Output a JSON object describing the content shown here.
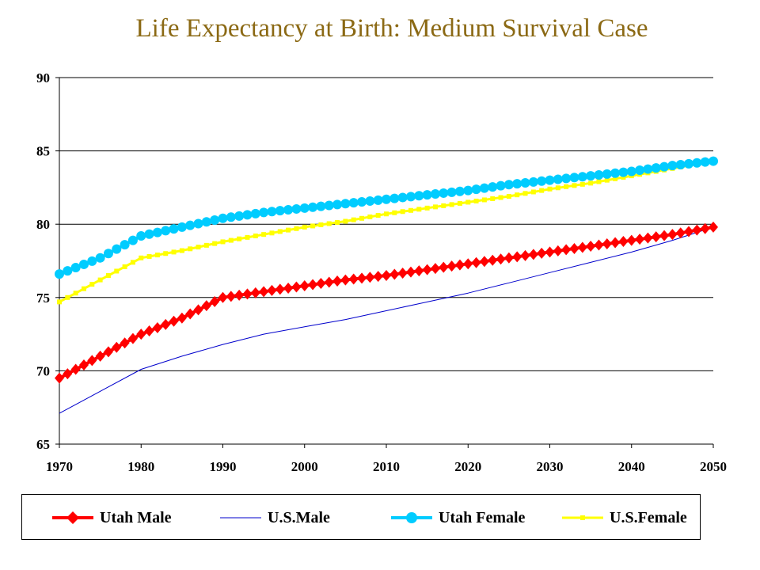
{
  "chart_data": {
    "type": "line",
    "title": "Life Expectancy at Birth: Medium Survival Case",
    "xlabel": "",
    "ylabel": "",
    "xlim": [
      1970,
      2050
    ],
    "ylim": [
      65,
      90
    ],
    "x_ticks": [
      "1970",
      "1980",
      "1990",
      "2000",
      "2010",
      "2020",
      "2030",
      "2040",
      "2050"
    ],
    "y_ticks": [
      "65",
      "70",
      "75",
      "80",
      "85",
      "90"
    ],
    "grid": "horizontal",
    "legend": "bottom",
    "series": [
      {
        "name": "Utah Male",
        "color": "#ff0000",
        "marker": "diamond",
        "points": [
          [
            1970,
            69.5
          ],
          [
            1975,
            71.0
          ],
          [
            1980,
            72.5
          ],
          [
            1985,
            73.6
          ],
          [
            1990,
            75.0
          ],
          [
            1995,
            75.4
          ],
          [
            2000,
            75.8
          ],
          [
            2005,
            76.2
          ],
          [
            2010,
            76.5
          ],
          [
            2015,
            76.9
          ],
          [
            2020,
            77.3
          ],
          [
            2025,
            77.7
          ],
          [
            2030,
            78.1
          ],
          [
            2035,
            78.5
          ],
          [
            2040,
            78.9
          ],
          [
            2045,
            79.3
          ],
          [
            2050,
            79.8
          ]
        ]
      },
      {
        "name": "U.S.Male",
        "color": "#0000cc",
        "marker": "none",
        "points": [
          [
            1970,
            67.1
          ],
          [
            1975,
            68.6
          ],
          [
            1980,
            70.1
          ],
          [
            1985,
            71.0
          ],
          [
            1990,
            71.8
          ],
          [
            1995,
            72.5
          ],
          [
            2000,
            73.0
          ],
          [
            2005,
            73.5
          ],
          [
            2010,
            74.1
          ],
          [
            2015,
            74.7
          ],
          [
            2020,
            75.3
          ],
          [
            2025,
            76.0
          ],
          [
            2030,
            76.7
          ],
          [
            2035,
            77.4
          ],
          [
            2040,
            78.1
          ],
          [
            2045,
            78.9
          ],
          [
            2050,
            79.8
          ]
        ]
      },
      {
        "name": "Utah Female",
        "color": "#00ccff",
        "marker": "circle",
        "points": [
          [
            1970,
            76.6
          ],
          [
            1975,
            77.7
          ],
          [
            1980,
            79.2
          ],
          [
            1985,
            79.8
          ],
          [
            1990,
            80.4
          ],
          [
            1995,
            80.8
          ],
          [
            2000,
            81.1
          ],
          [
            2005,
            81.4
          ],
          [
            2010,
            81.7
          ],
          [
            2015,
            82.0
          ],
          [
            2020,
            82.3
          ],
          [
            2025,
            82.7
          ],
          [
            2030,
            83.0
          ],
          [
            2035,
            83.3
          ],
          [
            2040,
            83.6
          ],
          [
            2045,
            84.0
          ],
          [
            2050,
            84.3
          ]
        ]
      },
      {
        "name": "U.S.Female",
        "color": "#ffff00",
        "marker": "square",
        "points": [
          [
            1970,
            74.7
          ],
          [
            1975,
            76.2
          ],
          [
            1980,
            77.7
          ],
          [
            1985,
            78.2
          ],
          [
            1990,
            78.8
          ],
          [
            1995,
            79.3
          ],
          [
            2000,
            79.8
          ],
          [
            2005,
            80.2
          ],
          [
            2010,
            80.7
          ],
          [
            2015,
            81.1
          ],
          [
            2020,
            81.5
          ],
          [
            2025,
            81.9
          ],
          [
            2030,
            82.4
          ],
          [
            2035,
            82.8
          ],
          [
            2040,
            83.3
          ],
          [
            2045,
            83.8
          ],
          [
            2050,
            84.3
          ]
        ]
      }
    ]
  }
}
